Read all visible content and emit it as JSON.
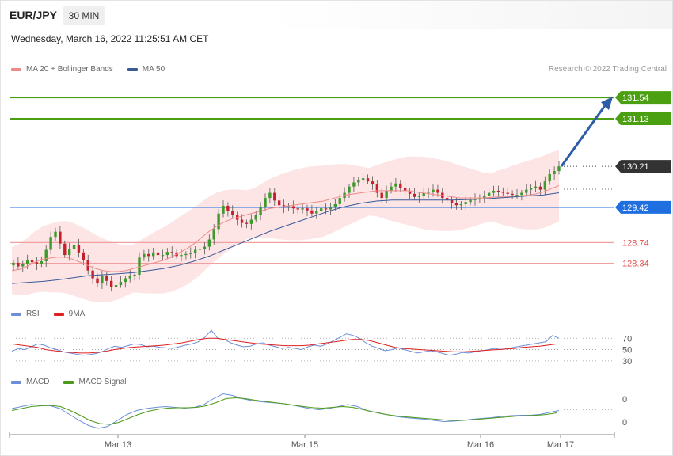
{
  "header": {
    "symbol": "EUR/JPY",
    "timeframe": "30 MIN",
    "datetime": "Wednesday, March 16, 2022 11:25:51 AM CET"
  },
  "legend_price": [
    {
      "name": "MA 20 + Bollinger Bands",
      "color": "#f08a8a"
    },
    {
      "name": "MA 50",
      "color": "#3a5a98"
    }
  ],
  "legend_rsi": [
    {
      "name": "RSI",
      "color": "#6b8fd9"
    },
    {
      "name": "9MA",
      "color": "#e02020"
    }
  ],
  "legend_macd": [
    {
      "name": "MACD",
      "color": "#6b8fd9"
    },
    {
      "name": "MACD Signal",
      "color": "#4c9a1a"
    }
  ],
  "credit": "Research © 2022 Trading Central",
  "chart_data": {
    "type": "line",
    "title": "EUR/JPY",
    "timeframe": "30 MIN",
    "x_tick_labels": [
      "Mar 13",
      "Mar 15",
      "Mar 16",
      "Mar 17"
    ],
    "price_range": [
      127.6,
      132.0
    ],
    "levels": [
      {
        "value": 131.54,
        "label": "131.54",
        "kind": "resistance",
        "color": "#4aa010"
      },
      {
        "value": 131.13,
        "label": "131.13",
        "kind": "resistance",
        "color": "#4aa010"
      },
      {
        "value": 130.21,
        "label": "130.21",
        "kind": "last",
        "color": "#333333"
      },
      {
        "value": 129.42,
        "label": "129.42",
        "kind": "pivot",
        "color": "#1f6fe0"
      },
      {
        "value": 128.74,
        "label": "128.74",
        "kind": "support",
        "color": "#e05050"
      },
      {
        "value": 128.34,
        "label": "128.34",
        "kind": "support",
        "color": "#e05050"
      }
    ],
    "close_series": [
      128.35,
      128.28,
      128.32,
      128.4,
      128.36,
      128.32,
      128.38,
      128.6,
      128.85,
      128.95,
      128.72,
      128.5,
      128.62,
      128.7,
      128.55,
      128.4,
      128.2,
      128.05,
      127.95,
      128.1,
      128.0,
      127.88,
      127.92,
      127.98,
      128.05,
      128.1,
      128.12,
      128.45,
      128.52,
      128.48,
      128.55,
      128.5,
      128.5,
      128.56,
      128.55,
      128.48,
      128.5,
      128.52,
      128.54,
      128.6,
      128.62,
      128.66,
      128.8,
      129.0,
      129.3,
      129.45,
      129.35,
      129.28,
      129.18,
      129.12,
      129.1,
      129.18,
      129.28,
      129.42,
      129.6,
      129.7,
      129.55,
      129.46,
      129.42,
      129.44,
      129.4,
      129.38,
      129.4,
      129.36,
      129.3,
      129.35,
      129.4,
      129.38,
      129.42,
      129.48,
      129.6,
      129.7,
      129.82,
      129.9,
      129.95,
      129.98,
      129.92,
      129.86,
      129.7,
      129.6,
      129.74,
      129.82,
      129.88,
      129.8,
      129.74,
      129.68,
      129.62,
      129.64,
      129.7,
      129.72,
      129.76,
      129.7,
      129.6,
      129.56,
      129.5,
      129.46,
      129.48,
      129.52,
      129.56,
      129.58,
      129.6,
      129.64,
      129.7,
      129.74,
      129.72,
      129.7,
      129.68,
      129.66,
      129.66,
      129.7,
      129.76,
      129.8,
      129.82,
      129.76,
      129.92,
      130.06,
      130.12,
      130.21
    ],
    "ma20_series": [
      128.2,
      128.22,
      128.28,
      128.36,
      128.42,
      128.44,
      128.46,
      128.46,
      128.42,
      128.36,
      128.3,
      128.24,
      128.2,
      128.18,
      128.18,
      128.2,
      128.24,
      128.28,
      128.32,
      128.36,
      128.4,
      128.46,
      128.54,
      128.62,
      128.72,
      128.84,
      128.96,
      129.06,
      129.14,
      129.2,
      129.24,
      129.28,
      129.32,
      129.36,
      129.4,
      129.42,
      129.44,
      129.46,
      129.48,
      129.5,
      129.52,
      129.54,
      129.58,
      129.62,
      129.66,
      129.68,
      129.7,
      129.72,
      129.74,
      129.74,
      129.74,
      129.74,
      129.74,
      129.72,
      129.7,
      129.68,
      129.66,
      129.64,
      129.62,
      129.6,
      129.6,
      129.6,
      129.6,
      129.61,
      129.62,
      129.62,
      129.63,
      129.64,
      129.66,
      129.68,
      129.72,
      129.78,
      129.84
    ],
    "ma50_series": [
      127.95,
      127.97,
      127.99,
      128.02,
      128.06,
      128.1,
      128.12,
      128.14,
      128.16,
      128.2,
      128.24,
      128.3,
      128.38,
      128.48,
      128.6,
      128.72,
      128.84,
      128.96,
      129.06,
      129.16,
      129.26,
      129.36,
      129.44,
      129.5,
      129.54,
      129.56,
      129.56,
      129.56,
      129.56,
      129.56,
      129.57,
      129.58,
      129.6,
      129.62,
      129.64,
      129.66,
      129.7
    ],
    "rsi_series": [
      47,
      52,
      50,
      55,
      60,
      58,
      53,
      50,
      46,
      44,
      42,
      40,
      41,
      43,
      46,
      52,
      56,
      54,
      57,
      60,
      59,
      55,
      56,
      54,
      53,
      52,
      55,
      58,
      60,
      64,
      72,
      84,
      70,
      68,
      62,
      58,
      55,
      56,
      60,
      62,
      58,
      55,
      52,
      54,
      52,
      50,
      55,
      58,
      56,
      60,
      66,
      72,
      78,
      75,
      70,
      62,
      56,
      52,
      48,
      50,
      53,
      50,
      47,
      44,
      46,
      48,
      46,
      43,
      40,
      42,
      45,
      44,
      46,
      48,
      50,
      52,
      50,
      52,
      54,
      56,
      58,
      60,
      62,
      64,
      75,
      70
    ],
    "rsi_ma_series": [
      60,
      58,
      56,
      54,
      50,
      48,
      46,
      45,
      44,
      44,
      45,
      47,
      50,
      52,
      54,
      55,
      56,
      57,
      58,
      60,
      62,
      65,
      68,
      70,
      70,
      68,
      66,
      64,
      62,
      60,
      59,
      58,
      57,
      57,
      57,
      58,
      60,
      62,
      64,
      66,
      68,
      68,
      66,
      62,
      58,
      54,
      52,
      51,
      50,
      49,
      48,
      47,
      46,
      46,
      47,
      48,
      49,
      50,
      51,
      52,
      54,
      55,
      56,
      58,
      60
    ],
    "rsi_levels": [
      70,
      50,
      30
    ],
    "macd_series": [
      0.05,
      0.1,
      0.15,
      0.13,
      0.12,
      0.05,
      -0.1,
      -0.25,
      -0.38,
      -0.45,
      -0.4,
      -0.25,
      -0.1,
      0.0,
      0.05,
      0.08,
      0.1,
      0.08,
      0.06,
      0.08,
      0.15,
      0.3,
      0.42,
      0.38,
      0.3,
      0.25,
      0.22,
      0.2,
      0.18,
      0.15,
      0.1,
      0.05,
      0.02,
      0.05,
      0.1,
      0.15,
      0.1,
      0.0,
      -0.05,
      -0.1,
      -0.15,
      -0.18,
      -0.2,
      -0.22,
      -0.25,
      -0.28,
      -0.27,
      -0.25,
      -0.22,
      -0.2,
      -0.18,
      -0.15,
      -0.13,
      -0.12,
      -0.12,
      -0.1,
      -0.05,
      0.0
    ],
    "macd_signal_series": [
      0.0,
      0.05,
      0.1,
      0.12,
      0.13,
      0.1,
      0.0,
      -0.12,
      -0.25,
      -0.33,
      -0.35,
      -0.3,
      -0.2,
      -0.1,
      -0.02,
      0.03,
      0.06,
      0.07,
      0.07,
      0.08,
      0.12,
      0.2,
      0.3,
      0.32,
      0.3,
      0.26,
      0.23,
      0.2,
      0.17,
      0.13,
      0.1,
      0.07,
      0.06,
      0.08,
      0.1,
      0.08,
      0.03,
      -0.03,
      -0.08,
      -0.12,
      -0.15,
      -0.17,
      -0.19,
      -0.21,
      -0.23,
      -0.25,
      -0.25,
      -0.24,
      -0.22,
      -0.2,
      -0.18,
      -0.16,
      -0.14,
      -0.13,
      -0.12,
      -0.1,
      -0.06
    ],
    "macd_tick_labels": [
      "0",
      "0"
    ]
  }
}
